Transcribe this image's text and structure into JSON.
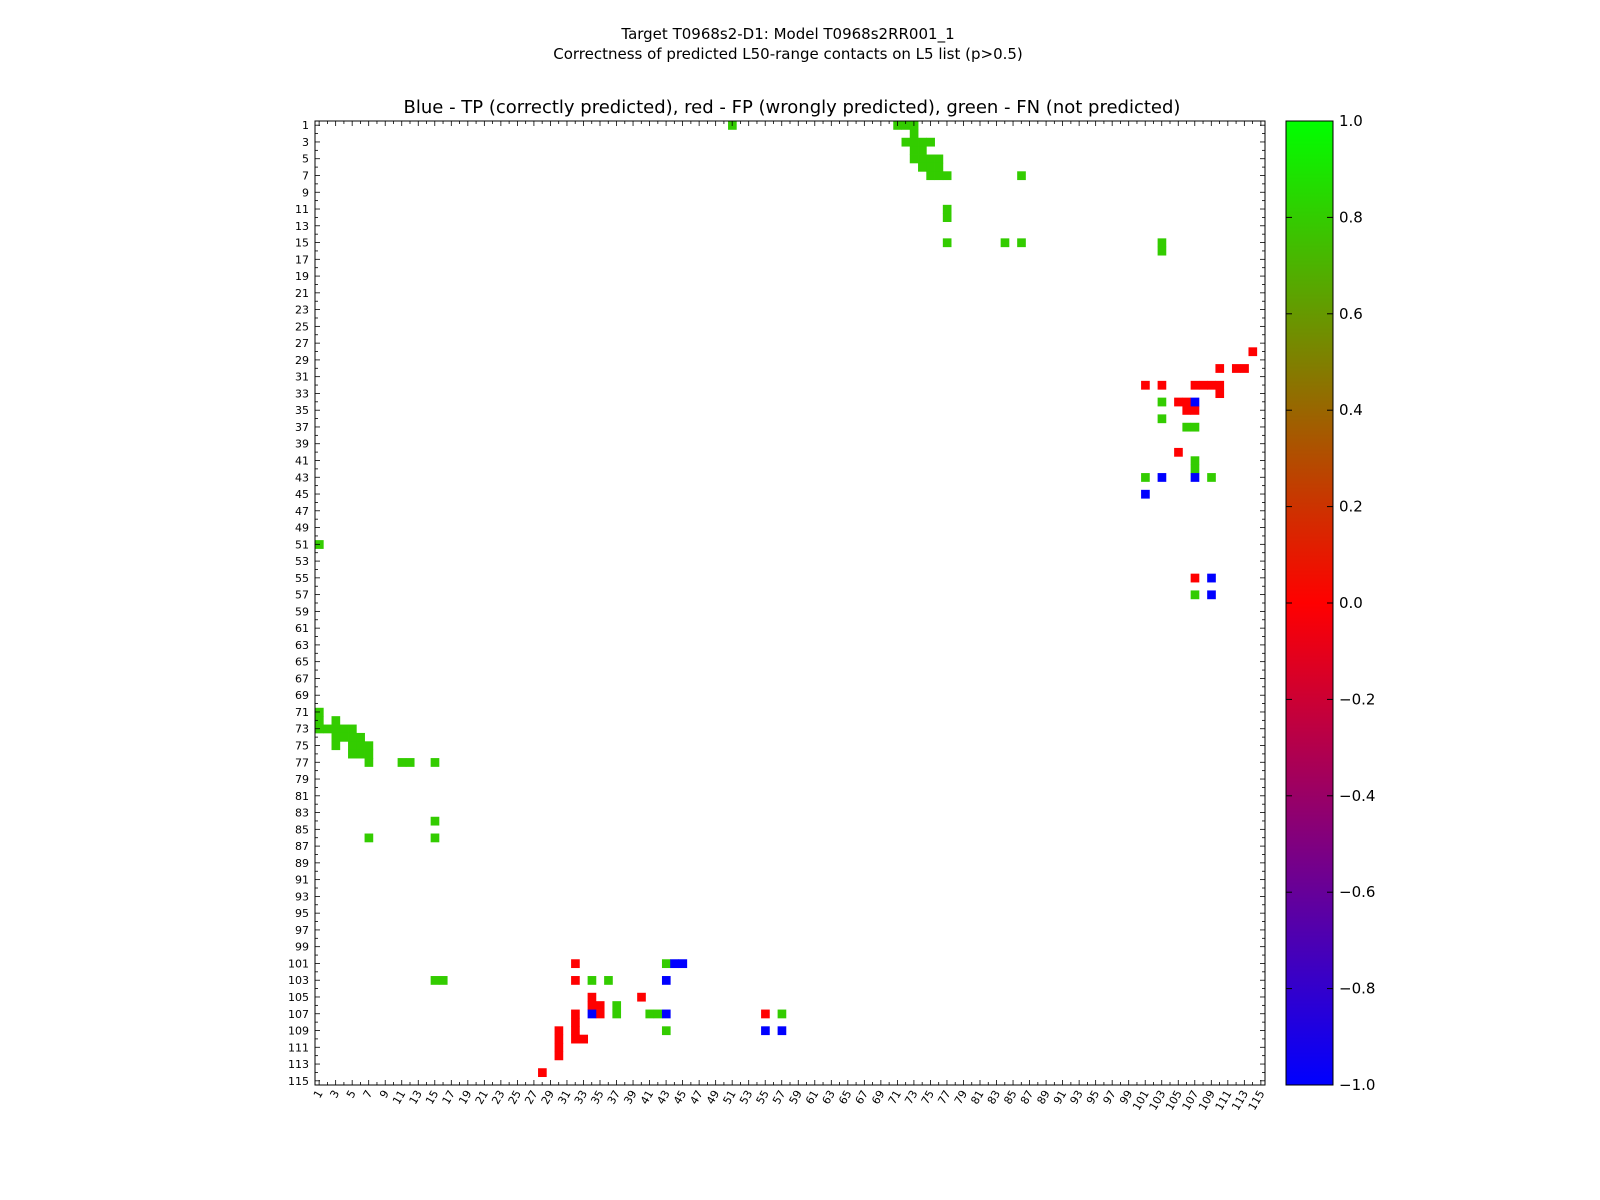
{
  "chart_data": {
    "type": "heatmap",
    "title_line1": "Target T0968s2-D1: Model T0968s2RR001_1",
    "title_line2": "Correctness of predicted L50-range contacts on L5 list (p>0.5)",
    "plot_title": "Blue - TP (correctly predicted), red - FP (wrongly predicted), green - FN (not predicted)",
    "size": 115,
    "axis_range": [
      1,
      115
    ],
    "tick_step": 2,
    "colorbar": {
      "range": [
        -1.0,
        1.0
      ],
      "ticks": [
        "1.0",
        "0.8",
        "0.6",
        "0.4",
        "0.2",
        "0.0",
        "−0.2",
        "−0.4",
        "−0.6",
        "−0.8",
        "−1.0"
      ],
      "tick_values": [
        1.0,
        0.8,
        0.6,
        0.4,
        0.2,
        0.0,
        -0.2,
        -0.4,
        -0.6,
        -0.8,
        -1.0
      ],
      "colors": [
        "#0000ff",
        "#ff0000",
        "#00ff00"
      ]
    },
    "legend": {
      "tp": "Blue - TP (correctly predicted)",
      "fp": "red - FP (wrongly predicted)",
      "fn": "green - FN (not predicted)"
    },
    "cell_colors": {
      "tp": "#0000ff",
      "fp": "#ff0000",
      "fn": "#33cc00"
    },
    "fn_cells": [
      [
        1,
        51
      ],
      [
        1,
        71
      ],
      [
        1,
        72
      ],
      [
        1,
        73
      ],
      [
        2,
        73
      ],
      [
        3,
        72
      ],
      [
        3,
        73
      ],
      [
        3,
        74
      ],
      [
        3,
        75
      ],
      [
        4,
        73
      ],
      [
        4,
        74
      ],
      [
        5,
        73
      ],
      [
        5,
        74
      ],
      [
        5,
        75
      ],
      [
        5,
        76
      ],
      [
        6,
        74
      ],
      [
        6,
        75
      ],
      [
        6,
        76
      ],
      [
        7,
        75
      ],
      [
        7,
        76
      ],
      [
        7,
        77
      ],
      [
        7,
        86
      ],
      [
        11,
        77
      ],
      [
        12,
        77
      ],
      [
        15,
        77
      ],
      [
        15,
        84
      ],
      [
        15,
        86
      ],
      [
        15,
        103
      ],
      [
        16,
        103
      ],
      [
        34,
        103
      ],
      [
        36,
        103
      ],
      [
        37,
        106
      ],
      [
        37,
        107
      ],
      [
        41,
        107
      ],
      [
        42,
        107
      ],
      [
        43,
        101
      ],
      [
        43,
        109
      ],
      [
        57,
        107
      ],
      [
        51,
        1
      ],
      [
        71,
        1
      ],
      [
        72,
        1
      ],
      [
        73,
        1
      ],
      [
        73,
        2
      ],
      [
        73,
        3
      ],
      [
        72,
        3
      ],
      [
        74,
        3
      ],
      [
        75,
        3
      ],
      [
        73,
        4
      ],
      [
        74,
        4
      ],
      [
        73,
        5
      ],
      [
        74,
        5
      ],
      [
        75,
        5
      ],
      [
        76,
        5
      ],
      [
        74,
        6
      ],
      [
        75,
        6
      ],
      [
        76,
        6
      ],
      [
        75,
        7
      ],
      [
        76,
        7
      ],
      [
        77,
        7
      ],
      [
        86,
        7
      ],
      [
        77,
        11
      ],
      [
        77,
        12
      ],
      [
        77,
        15
      ],
      [
        84,
        15
      ],
      [
        86,
        15
      ],
      [
        103,
        15
      ],
      [
        103,
        16
      ],
      [
        103,
        34
      ],
      [
        103,
        36
      ],
      [
        106,
        37
      ],
      [
        107,
        37
      ],
      [
        107,
        41
      ],
      [
        107,
        42
      ],
      [
        101,
        43
      ],
      [
        109,
        43
      ],
      [
        107,
        57
      ]
    ],
    "fp_cells": [
      [
        28,
        114
      ],
      [
        30,
        110
      ],
      [
        30,
        112
      ],
      [
        30,
        113
      ],
      [
        32,
        101
      ],
      [
        32,
        103
      ],
      [
        32,
        107
      ],
      [
        32,
        108
      ],
      [
        32,
        109
      ],
      [
        32,
        110
      ],
      [
        33,
        110
      ],
      [
        34,
        105
      ],
      [
        34,
        106
      ],
      [
        35,
        106
      ],
      [
        35,
        107
      ],
      [
        40,
        105
      ],
      [
        55,
        107
      ],
      [
        101,
        32
      ],
      [
        103,
        32
      ],
      [
        105,
        34
      ],
      [
        106,
        34
      ],
      [
        106,
        35
      ],
      [
        107,
        35
      ],
      [
        107,
        32
      ],
      [
        108,
        32
      ],
      [
        109,
        32
      ],
      [
        110,
        32
      ],
      [
        110,
        33
      ],
      [
        109,
        30
      ],
      [
        110,
        30
      ],
      [
        111,
        30
      ],
      [
        112,
        30
      ],
      [
        114,
        28
      ],
      [
        105,
        40
      ],
      [
        107,
        55
      ]
    ],
    "tp_cells": [
      [
        34,
        107
      ],
      [
        43,
        103
      ],
      [
        43,
        107
      ],
      [
        45,
        101
      ],
      [
        55,
        109
      ],
      [
        57,
        109
      ],
      [
        107,
        34
      ],
      [
        103,
        43
      ],
      [
        107,
        43
      ],
      [
        101,
        45
      ],
      [
        109,
        55
      ],
      [
        109,
        57
      ],
      [
        101,
        44
      ]
    ]
  }
}
